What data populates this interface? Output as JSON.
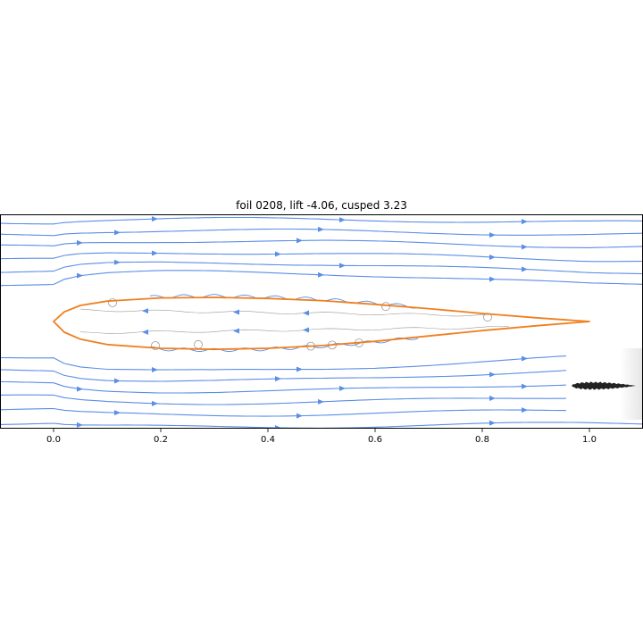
{
  "figure": {
    "title": "foil 0208, lift -4.06, cusped  3.23"
  },
  "chart_data": {
    "type": "streamplot",
    "title": "foil 0208, lift -4.06, cusped  3.23",
    "xlabel": "",
    "ylabel": "",
    "xlim": [
      -0.1,
      1.1
    ],
    "ylim": [
      -0.2,
      0.2
    ],
    "x_ticks": [
      0.0,
      0.2,
      0.4,
      0.6,
      0.8,
      1.0
    ],
    "x_tick_labels": [
      "0.0",
      "0.2",
      "0.4",
      "0.6",
      "0.8",
      "1.0"
    ],
    "y_ticks_visible": false,
    "grid": false,
    "colors": {
      "streamlines": "#5b8ee6",
      "airfoil_outline": "#f07f1e",
      "wake_lines": "#999999",
      "inset_shape": "#222222"
    },
    "airfoil": {
      "name": "foil 0208",
      "lift": -4.06,
      "cusped": 3.23,
      "leading_edge": [
        0.0,
        0.0
      ],
      "trailing_edge": [
        1.0,
        0.0
      ],
      "upper_surface": [
        [
          0.0,
          0.0
        ],
        [
          0.02,
          0.018
        ],
        [
          0.05,
          0.03
        ],
        [
          0.1,
          0.038
        ],
        [
          0.2,
          0.044
        ],
        [
          0.3,
          0.045
        ],
        [
          0.4,
          0.043
        ],
        [
          0.5,
          0.039
        ],
        [
          0.6,
          0.032
        ],
        [
          0.7,
          0.024
        ],
        [
          0.8,
          0.015
        ],
        [
          0.9,
          0.007
        ],
        [
          1.0,
          0.0
        ]
      ],
      "lower_surface": [
        [
          0.0,
          0.0
        ],
        [
          0.02,
          -0.02
        ],
        [
          0.05,
          -0.033
        ],
        [
          0.1,
          -0.043
        ],
        [
          0.2,
          -0.05
        ],
        [
          0.3,
          -0.052
        ],
        [
          0.4,
          -0.05
        ],
        [
          0.5,
          -0.045
        ],
        [
          0.6,
          -0.037
        ],
        [
          0.7,
          -0.027
        ],
        [
          0.8,
          -0.017
        ],
        [
          0.9,
          -0.008
        ],
        [
          1.0,
          0.0
        ]
      ]
    },
    "streamlines": {
      "free_stream_y_levels": [
        -0.19,
        -0.165,
        -0.14,
        -0.115,
        -0.09,
        -0.065,
        0.07,
        0.092,
        0.115,
        0.14,
        0.162,
        0.185
      ],
      "direction": "left-to-right"
    }
  }
}
